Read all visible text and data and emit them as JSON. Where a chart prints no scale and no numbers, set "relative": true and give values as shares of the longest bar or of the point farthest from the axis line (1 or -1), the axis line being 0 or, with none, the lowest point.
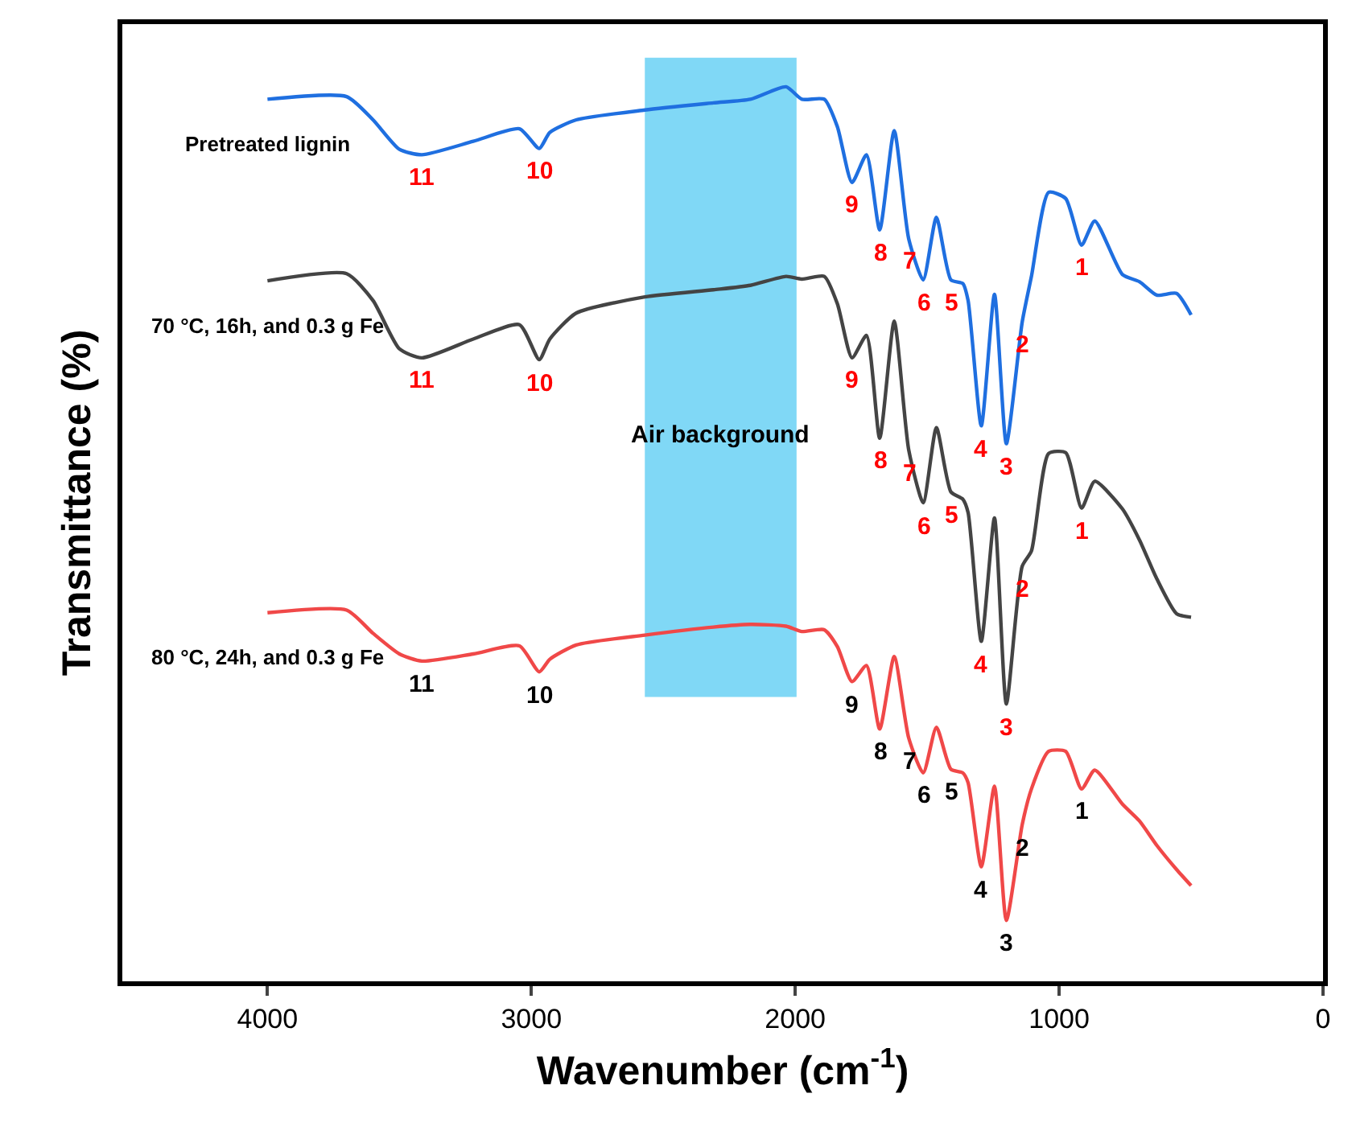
{
  "chart_data": {
    "type": "line",
    "relative": true,
    "xlabel": "Wavenumber (cm$^{-1}$)",
    "ylabel": "Transmittance (%)",
    "xlim": [
      4550,
      0
    ],
    "xticks": [
      4000,
      3000,
      2000,
      1000,
      0
    ],
    "x": [
      4000,
      3700,
      3600,
      3500,
      3415,
      3220,
      3045,
      2970,
      2930,
      2830,
      2570,
      2310,
      2170,
      2035,
      1975,
      1890,
      1840,
      1785,
      1730,
      1680,
      1625,
      1570,
      1515,
      1465,
      1410,
      1365,
      1345,
      1295,
      1245,
      1200,
      1140,
      1105,
      1040,
      975,
      915,
      865,
      760,
      695,
      630,
      555,
      500
    ],
    "series": [
      {
        "name": "Pretreated lignin",
        "color": "#1f6fe0",
        "values": [
          0.986,
          0.989,
          0.963,
          0.93,
          0.924,
          0.939,
          0.953,
          0.931,
          0.949,
          0.963,
          0.974,
          0.982,
          0.986,
          1.0,
          0.986,
          0.986,
          0.955,
          0.893,
          0.924,
          0.84,
          0.951,
          0.83,
          0.784,
          0.854,
          0.784,
          0.78,
          0.761,
          0.621,
          0.768,
          0.601,
          0.737,
          0.788,
          0.882,
          0.875,
          0.823,
          0.85,
          0.79,
          0.782,
          0.767,
          0.769,
          0.745
        ]
      },
      {
        "name": "70 °C, 16h, and 0.3 g Fe",
        "color": "#444444",
        "values": [
          0.783,
          0.791,
          0.761,
          0.707,
          0.697,
          0.718,
          0.734,
          0.695,
          0.718,
          0.747,
          0.765,
          0.773,
          0.778,
          0.788,
          0.785,
          0.788,
          0.757,
          0.697,
          0.722,
          0.607,
          0.738,
          0.594,
          0.535,
          0.619,
          0.547,
          0.539,
          0.524,
          0.38,
          0.518,
          0.31,
          0.464,
          0.481,
          0.59,
          0.591,
          0.529,
          0.559,
          0.528,
          0.493,
          0.45,
          0.411,
          0.407
        ]
      },
      {
        "name": "80 °C, 24h, and 0.3 g Fe",
        "color": "#f04848",
        "values": [
          0.412,
          0.415,
          0.389,
          0.366,
          0.358,
          0.366,
          0.375,
          0.346,
          0.36,
          0.376,
          0.387,
          0.396,
          0.399,
          0.397,
          0.391,
          0.393,
          0.374,
          0.335,
          0.353,
          0.282,
          0.363,
          0.272,
          0.233,
          0.284,
          0.237,
          0.233,
          0.222,
          0.128,
          0.218,
          0.068,
          0.175,
          0.215,
          0.257,
          0.257,
          0.215,
          0.236,
          0.198,
          0.179,
          0.152,
          0.125,
          0.107
        ]
      }
    ],
    "bands": [
      {
        "axis": "x",
        "from": 2570,
        "to": 1995,
        "label": "Air background",
        "color": "#80d8f6"
      }
    ],
    "annotations": [
      {
        "text": "11",
        "x": 3415,
        "y": 0.924
      },
      {
        "text": "10",
        "x": 2970,
        "y": 0.931
      },
      {
        "text": "9",
        "x": 1785,
        "y": 0.893
      },
      {
        "text": "8",
        "x": 1680,
        "y": 0.84
      },
      {
        "text": "7",
        "x": 1570,
        "y": 0.83
      },
      {
        "text": "6",
        "x": 1515,
        "y": 0.784
      },
      {
        "text": "5",
        "x": 1410,
        "y": 0.784
      },
      {
        "text": "4",
        "x": 1295,
        "y": 0.621
      },
      {
        "text": "3",
        "x": 1200,
        "y": 0.601
      },
      {
        "text": "2",
        "x": 1140,
        "y": 0.737
      },
      {
        "text": "1",
        "x": 915,
        "y": 0.823
      },
      {
        "text": "11",
        "x": 3415,
        "y": 0.697
      },
      {
        "text": "10",
        "x": 2970,
        "y": 0.695
      },
      {
        "text": "9",
        "x": 1785,
        "y": 0.697
      },
      {
        "text": "8",
        "x": 1680,
        "y": 0.607
      },
      {
        "text": "7",
        "x": 1570,
        "y": 0.594
      },
      {
        "text": "6",
        "x": 1515,
        "y": 0.535
      },
      {
        "text": "5",
        "x": 1410,
        "y": 0.547
      },
      {
        "text": "4",
        "x": 1295,
        "y": 0.38
      },
      {
        "text": "3",
        "x": 1200,
        "y": 0.31
      },
      {
        "text": "2",
        "x": 1140,
        "y": 0.464
      },
      {
        "text": "1",
        "x": 915,
        "y": 0.529
      },
      {
        "text": "11",
        "x": 3415,
        "y": 0.358
      },
      {
        "text": "10",
        "x": 2970,
        "y": 0.346
      },
      {
        "text": "9",
        "x": 1785,
        "y": 0.335
      },
      {
        "text": "8",
        "x": 1680,
        "y": 0.282
      },
      {
        "text": "7",
        "x": 1570,
        "y": 0.272
      },
      {
        "text": "6",
        "x": 1515,
        "y": 0.233
      },
      {
        "text": "5",
        "x": 1410,
        "y": 0.237
      },
      {
        "text": "4",
        "x": 1295,
        "y": 0.128
      },
      {
        "text": "3",
        "x": 1200,
        "y": 0.068
      },
      {
        "text": "2",
        "x": 1140,
        "y": 0.175
      },
      {
        "text": "1",
        "x": 915,
        "y": 0.215
      }
    ]
  }
}
